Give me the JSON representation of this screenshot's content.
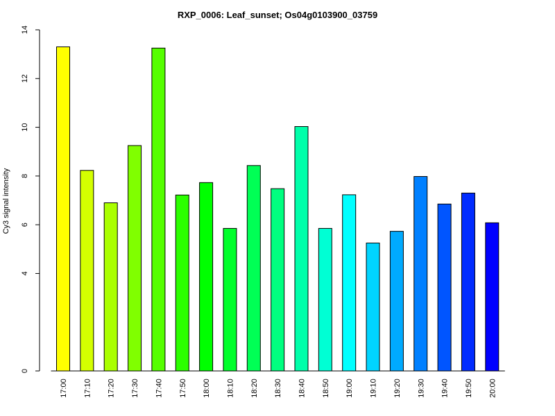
{
  "chart_data": {
    "type": "bar",
    "title": "RXP_0006: Leaf_sunset; Os04g0103900_03759",
    "xlabel": "",
    "ylabel": "Cy3 signal intensity",
    "ylim": [
      0,
      14
    ],
    "yticks": [
      0,
      4,
      6,
      8,
      10,
      12,
      14
    ],
    "grid": false,
    "categories": [
      "17:00",
      "17:10",
      "17:20",
      "17:30",
      "17:40",
      "17:50",
      "18:00",
      "18:10",
      "18:20",
      "18:30",
      "18:40",
      "18:50",
      "19:00",
      "19:10",
      "19:20",
      "19:30",
      "19:40",
      "19:50",
      "20:00"
    ],
    "values": [
      13.3,
      8.23,
      6.9,
      9.25,
      13.25,
      7.22,
      7.73,
      5.85,
      8.43,
      7.48,
      10.03,
      5.85,
      7.23,
      5.25,
      5.73,
      7.98,
      6.85,
      7.3,
      6.08
    ],
    "colors": [
      "#ffff00",
      "#d4ff00",
      "#aaff00",
      "#80ff00",
      "#55ff00",
      "#2bff00",
      "#00ff00",
      "#00ff2b",
      "#00ff55",
      "#00ff80",
      "#00ffaa",
      "#00ffd4",
      "#00ffff",
      "#00d4ff",
      "#00aaff",
      "#0080ff",
      "#0055ff",
      "#002bff",
      "#0000ff"
    ]
  }
}
